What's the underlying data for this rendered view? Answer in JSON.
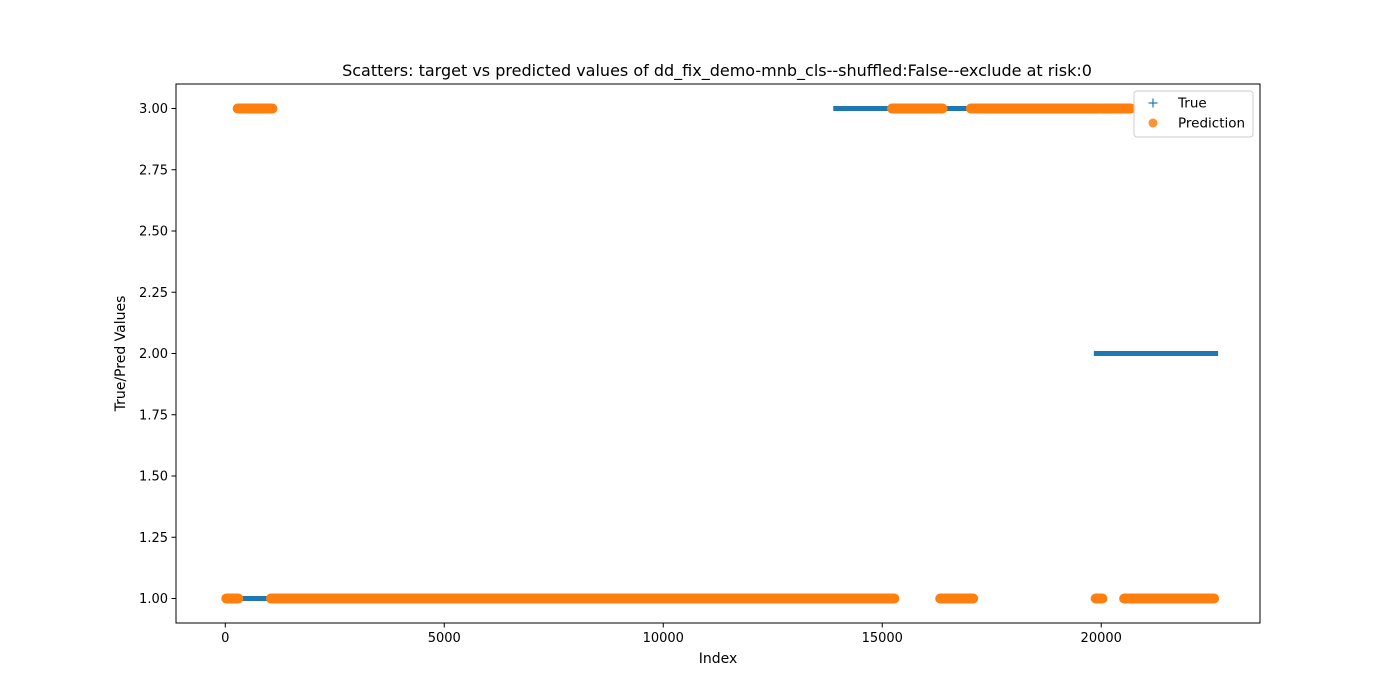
{
  "chart_data": {
    "type": "scatter",
    "title": "Scatters: target vs predicted values of dd_fix_demo-mnb_cls--shuffled:False--exclude at risk:0",
    "xlabel": "Index",
    "ylabel": "True/Pred Values",
    "xlim": [
      -1125,
      23625
    ],
    "ylim": [
      0.9,
      3.1
    ],
    "x_ticks": [
      0,
      5000,
      10000,
      15000,
      20000
    ],
    "x_tick_labels": [
      "0",
      "5000",
      "10000",
      "15000",
      "20000"
    ],
    "y_ticks": [
      1.0,
      1.25,
      1.5,
      1.75,
      2.0,
      2.25,
      2.5,
      2.75,
      3.0
    ],
    "y_tick_labels": [
      "1.00",
      "1.25",
      "1.50",
      "1.75",
      "2.00",
      "2.25",
      "2.50",
      "2.75",
      "3.00"
    ],
    "grid": false,
    "legend_position": "top-right",
    "series": [
      {
        "name": "True",
        "marker": "plus",
        "color": "#1f77b4",
        "runs": [
          {
            "x_start": 0,
            "x_end": 13900,
            "y": 1.0
          },
          {
            "x_start": 13950,
            "x_end": 19900,
            "y": 3.0
          },
          {
            "x_start": 19900,
            "x_end": 22600,
            "y": 2.0
          }
        ]
      },
      {
        "name": "Prediction",
        "marker": "circle",
        "color": "#ff7f0e",
        "runs": [
          {
            "x_start": 0,
            "x_end": 320,
            "y": 1.0
          },
          {
            "x_start": 260,
            "x_end": 1100,
            "y": 3.0
          },
          {
            "x_start": 1020,
            "x_end": 15300,
            "y": 1.0
          },
          {
            "x_start": 15200,
            "x_end": 16400,
            "y": 3.0
          },
          {
            "x_start": 16300,
            "x_end": 17100,
            "y": 1.0
          },
          {
            "x_start": 17000,
            "x_end": 19950,
            "y": 3.0
          },
          {
            "x_start": 19850,
            "x_end": 20050,
            "y": 1.0
          },
          {
            "x_start": 19950,
            "x_end": 20700,
            "y": 3.0
          },
          {
            "x_start": 20500,
            "x_end": 22600,
            "y": 1.0
          }
        ]
      }
    ]
  }
}
